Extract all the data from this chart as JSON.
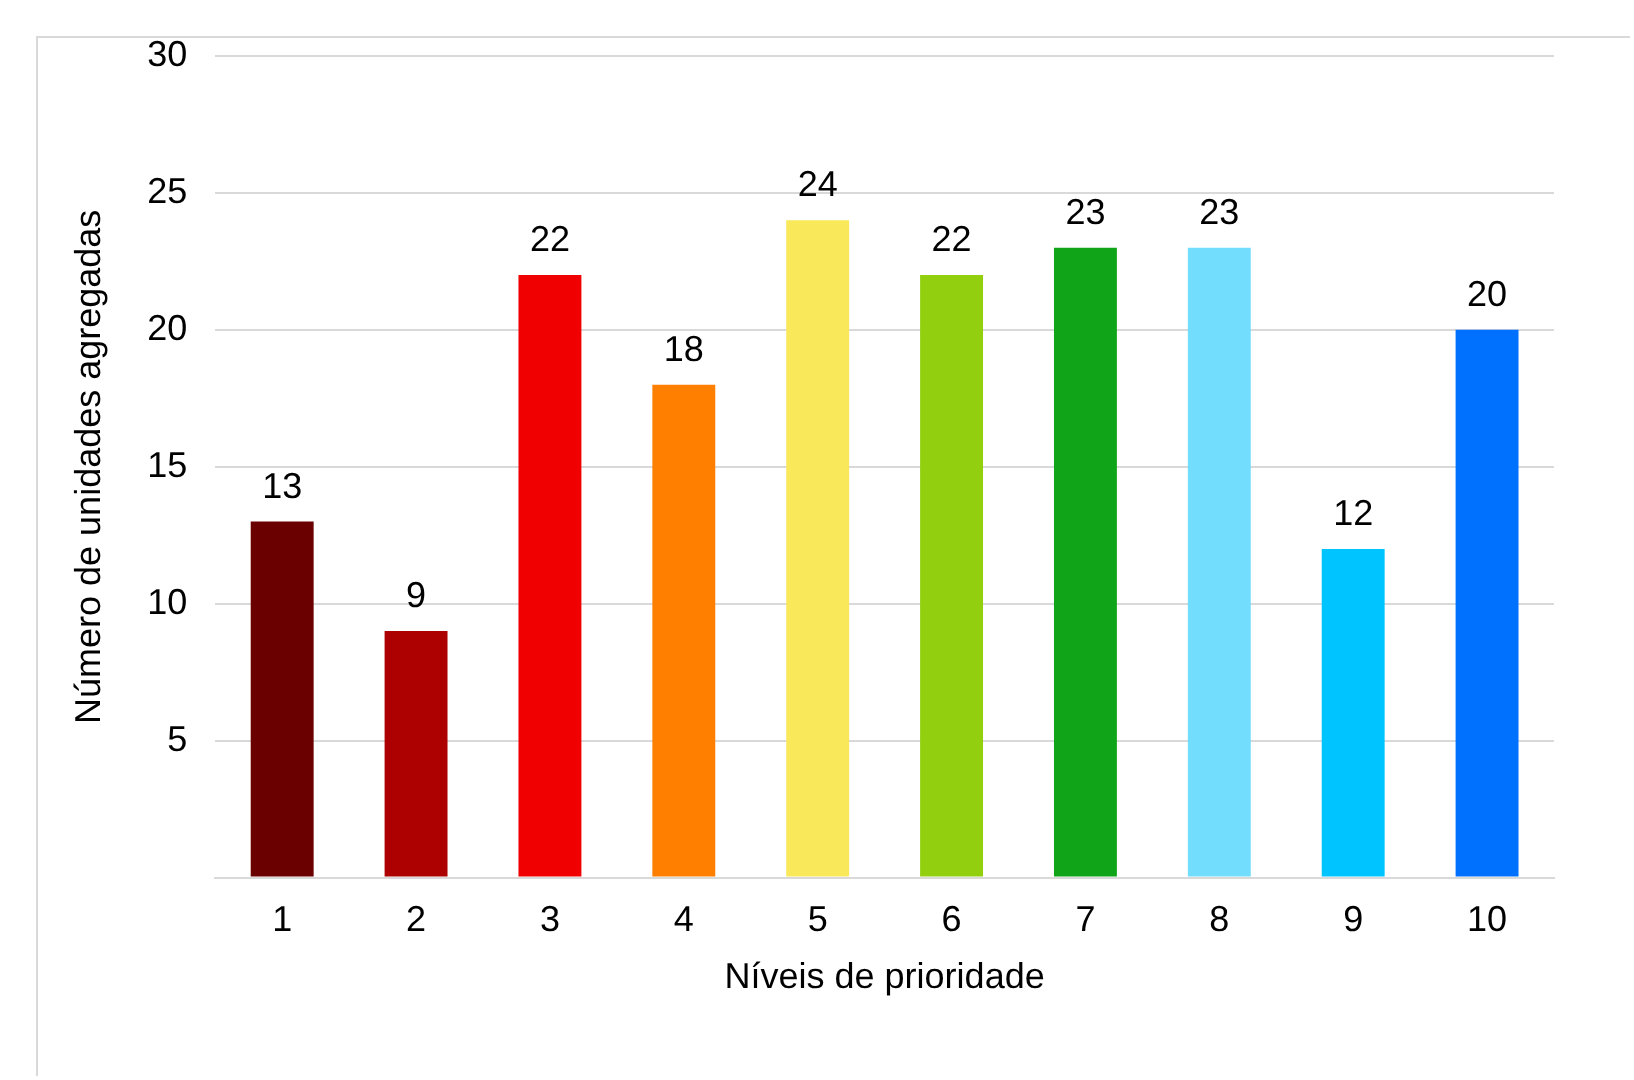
{
  "chart_data": {
    "type": "bar",
    "xlabel": "Níveis de prioridade",
    "ylabel": "Número de unidades agregadas",
    "categories": [
      "1",
      "2",
      "3",
      "4",
      "5",
      "6",
      "7",
      "8",
      "9",
      "10"
    ],
    "values": [
      13,
      9,
      22,
      18,
      24,
      22,
      23,
      23,
      12,
      20
    ],
    "colors": [
      "#6b0000",
      "#ad0000",
      "#f00000",
      "#ff8000",
      "#f8e85a",
      "#92d00f",
      "#10a518",
      "#72ddfd",
      "#00c4ff",
      "#0070ff"
    ],
    "ylim": [
      0,
      30
    ],
    "yticks": [
      {
        "value": 0,
        "label": null
      },
      5,
      10,
      15,
      20,
      25,
      30
    ],
    "grid": "y",
    "data_labels": true,
    "legend": false
  }
}
